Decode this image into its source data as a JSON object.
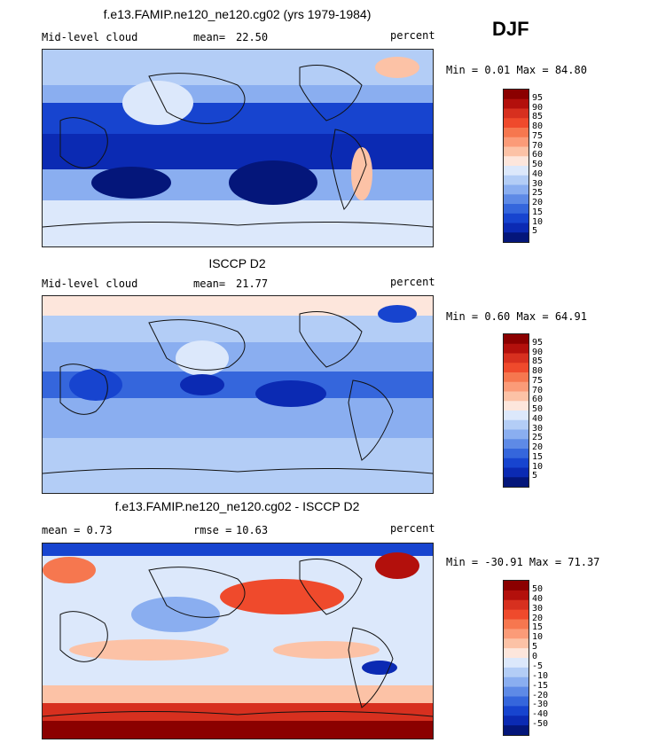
{
  "season": "DJF",
  "panels": [
    {
      "title": "f.e13.FAMIP.ne120_ne120.cg02 (yrs 1979-1984)",
      "left_label": "Mid-level cloud",
      "mean_label": "mean=",
      "mean_value": "22.50",
      "units": "percent",
      "stats": "Min =   0.01 Max =  84.80",
      "palette": "abs"
    },
    {
      "title": "ISCCP D2",
      "left_label": "Mid-level cloud",
      "mean_label": "mean=",
      "mean_value": "21.77",
      "units": "percent",
      "stats": "Min =   0.60 Max =  64.91",
      "palette": "abs"
    },
    {
      "title": "f.e13.FAMIP.ne120_ne120.cg02 - ISCCP D2",
      "left_label": "mean =   0.73",
      "mean_label": "rmse =",
      "mean_value": "10.63",
      "units": "percent",
      "stats": "Min = -30.91 Max =  71.37",
      "palette": "diff"
    }
  ],
  "chart_data": [
    {
      "type": "heatmap",
      "title": "f.e13.FAMIP.ne120_ne120.cg02 (yrs 1979-1984)",
      "field": "Mid-level cloud",
      "units": "percent",
      "mean": 22.5,
      "min": 0.01,
      "max": 84.8,
      "colorbar_levels": [
        "95",
        "90",
        "85",
        "80",
        "75",
        "70",
        "60",
        "50",
        "40",
        "30",
        "25",
        "20",
        "15",
        "10",
        "5"
      ],
      "colorbar_colors": [
        "#8b0000",
        "#b3100c",
        "#d7301f",
        "#ef4a2c",
        "#f6774f",
        "#fb9b78",
        "#fcc2a6",
        "#fde6dc",
        "#dce8fb",
        "#b3cdf6",
        "#8aaef0",
        "#5e8ae6",
        "#3566dc",
        "#1744cf",
        "#0b2ab3",
        "#04167a"
      ]
    },
    {
      "type": "heatmap",
      "title": "ISCCP D2",
      "field": "Mid-level cloud",
      "units": "percent",
      "mean": 21.77,
      "min": 0.6,
      "max": 64.91,
      "colorbar_levels": [
        "95",
        "90",
        "85",
        "80",
        "75",
        "70",
        "60",
        "50",
        "40",
        "30",
        "25",
        "20",
        "15",
        "10",
        "5"
      ],
      "colorbar_colors": [
        "#8b0000",
        "#b3100c",
        "#d7301f",
        "#ef4a2c",
        "#f6774f",
        "#fb9b78",
        "#fcc2a6",
        "#fde6dc",
        "#dce8fb",
        "#b3cdf6",
        "#8aaef0",
        "#5e8ae6",
        "#3566dc",
        "#1744cf",
        "#0b2ab3",
        "#04167a"
      ]
    },
    {
      "type": "heatmap",
      "title": "f.e13.FAMIP.ne120_ne120.cg02 - ISCCP D2",
      "units": "percent",
      "mean": 0.73,
      "rmse": 10.63,
      "min": -30.91,
      "max": 71.37,
      "colorbar_levels": [
        "50",
        "40",
        "30",
        "20",
        "15",
        "10",
        "5",
        "0",
        "-5",
        "-10",
        "-15",
        "-20",
        "-30",
        "-40",
        "-50"
      ],
      "colorbar_colors": [
        "#8b0000",
        "#b3100c",
        "#d7301f",
        "#ef4a2c",
        "#f6774f",
        "#fb9b78",
        "#fcc2a6",
        "#fde6dc",
        "#dce8fb",
        "#b3cdf6",
        "#8aaef0",
        "#5e8ae6",
        "#3566dc",
        "#1744cf",
        "#0b2ab3",
        "#04167a"
      ]
    }
  ]
}
